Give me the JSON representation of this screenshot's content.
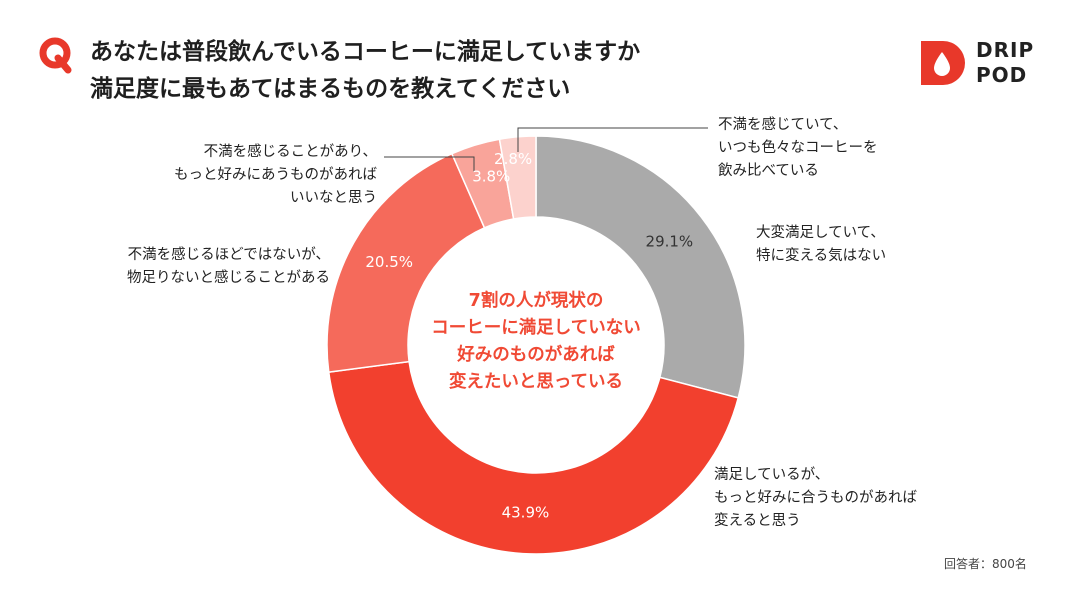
{
  "question_title_lines": [
    "あなたは普段飲んでいるコーヒーに満足していますか",
    "満足度に最もあてはまるものを教えてください"
  ],
  "brand": {
    "lines": [
      "DRIP",
      "POD"
    ],
    "color": "#e8382a"
  },
  "center_text_lines": [
    "7割の人が現状の",
    "コーヒーに満足していない",
    "好みのものがあれば",
    "変えたいと思っている"
  ],
  "respondents": "回答者：800名",
  "chart_data": {
    "type": "pie",
    "donut": true,
    "start": "top, clockwise",
    "slices": [
      {
        "label_lines": [
          "大変満足していて、",
          "特に変える気はない"
        ],
        "value": 29.1,
        "value_label": "29.1%",
        "color": "#aaaaaa"
      },
      {
        "label_lines": [
          "満足しているが、",
          "もっと好みに合うものがあれば",
          "変えると思う"
        ],
        "value": 43.9,
        "value_label": "43.9%",
        "color": "#f2402e"
      },
      {
        "label_lines": [
          "不満を感じるほどではないが、",
          "物足りないと感じることがある"
        ],
        "value": 20.5,
        "value_label": "20.5%",
        "color": "#f56a5b"
      },
      {
        "label_lines": [
          "不満を感じることがあり、",
          "もっと好みにあうものがあれば",
          "いいなと思う"
        ],
        "value": 3.8,
        "value_label": "3.8%",
        "color": "#f9a49a"
      },
      {
        "label_lines": [
          "不満を感じていて、",
          "いつも色々なコーヒーを",
          "飲み比べている"
        ],
        "value": 2.8,
        "value_label": "2.8%",
        "color": "#fcd2cd"
      }
    ]
  }
}
